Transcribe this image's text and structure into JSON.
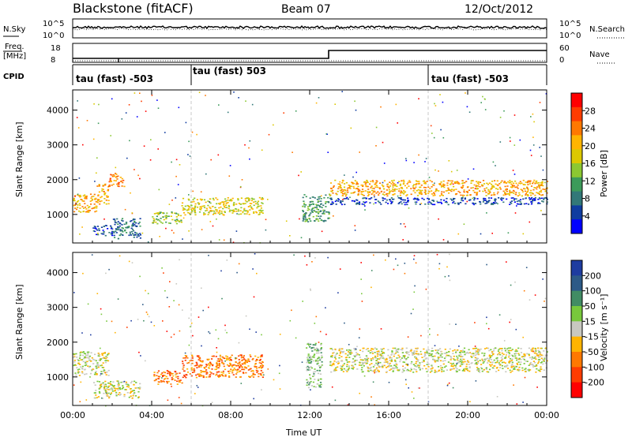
{
  "header": {
    "station": "Blackstone (fitACF)",
    "beam": "Beam 07",
    "date": "12/Oct/2012"
  },
  "nsky_panel": {
    "left_label": "N.Sky",
    "right_label": "N.Search",
    "left_ticks": [
      "10^5",
      "10^0"
    ],
    "right_ticks": [
      "10^5",
      "10^0"
    ]
  },
  "freq_panel": {
    "left_label_1": "Freq.",
    "left_label_2": "[MHz]",
    "left_ticks": [
      "18",
      "8"
    ],
    "right_label": "Nave",
    "right_ticks": [
      "60",
      "0"
    ]
  },
  "cpid_panel": {
    "label": "CPID",
    "modes": [
      {
        "start_h": 0,
        "text": "tau (fast) -503"
      },
      {
        "start_h": 6,
        "text": "tau (fast) 503"
      },
      {
        "start_h": 18,
        "text": "tau (fast) -503"
      }
    ]
  },
  "power_colorbar": {
    "label": "Power [dB]",
    "ticks": [
      "28",
      "24",
      "20",
      "16",
      "12",
      "8",
      "4"
    ],
    "colors": [
      "#ff0000",
      "#ff3c00",
      "#ff7800",
      "#ffb400",
      "#dcc800",
      "#8cc832",
      "#3c9b5a",
      "#327878",
      "#0f3ca0",
      "#0000ff"
    ]
  },
  "velocity_colorbar": {
    "label": "Velocity [m s⁻¹]",
    "ticks": [
      "200",
      "100",
      "50",
      "15",
      "-15",
      "-50",
      "-100",
      "-200"
    ],
    "colors": [
      "#1e3ca0",
      "#2d5a87",
      "#418c64",
      "#78c83c",
      "#c8c8c0",
      "#ffb400",
      "#ff7800",
      "#ff3c00",
      "#ff0000"
    ]
  },
  "chart_data": [
    {
      "type": "heatmap",
      "title": "Power",
      "ylabel": "Slant Range [km]",
      "xlabel": "Time UT",
      "x_ticks": [
        "00:00",
        "04:00",
        "08:00",
        "12:00",
        "16:00",
        "20:00",
        "00:00"
      ],
      "y_ticks": [
        "1000",
        "2000",
        "3000",
        "4000"
      ],
      "xlim_hours": [
        0,
        24
      ],
      "ylim_km": [
        180,
        4580
      ],
      "dashed_lines_hours": [
        6,
        18
      ],
      "echo_bands": [
        {
          "t": [
            0.0,
            1.2
          ],
          "r": [
            1050,
            1600
          ],
          "level": 3
        },
        {
          "t": [
            1.2,
            1.8
          ],
          "r": [
            1300,
            1900
          ],
          "level": 3
        },
        {
          "t": [
            1.8,
            2.6
          ],
          "r": [
            1800,
            2200
          ],
          "level": 2
        },
        {
          "t": [
            1.0,
            2.0
          ],
          "r": [
            400,
            700
          ],
          "level": 8
        },
        {
          "t": [
            2.0,
            3.4
          ],
          "r": [
            320,
            900
          ],
          "level": 7
        },
        {
          "t": [
            4.0,
            5.5
          ],
          "r": [
            750,
            1100
          ],
          "level": 5
        },
        {
          "t": [
            5.5,
            9.6
          ],
          "r": [
            1000,
            1500
          ],
          "level": 4
        },
        {
          "t": [
            11.6,
            13.0
          ],
          "r": [
            800,
            1600
          ],
          "level": 6
        },
        {
          "t": [
            13.0,
            24.0
          ],
          "r": [
            1550,
            2000
          ],
          "level": 3
        },
        {
          "t": [
            13.0,
            24.0
          ],
          "r": [
            1300,
            1500
          ],
          "level": 8
        }
      ]
    },
    {
      "type": "heatmap",
      "title": "Velocity",
      "ylabel": "Slant Range [km]",
      "xlabel": "Time UT",
      "x_ticks": [
        "00:00",
        "04:00",
        "08:00",
        "12:00",
        "16:00",
        "20:00",
        "00:00"
      ],
      "y_ticks": [
        "1000",
        "2000",
        "3000",
        "4000"
      ],
      "xlim_hours": [
        0,
        24
      ],
      "ylim_km": [
        180,
        4580
      ],
      "dashed_lines_hours": [
        6,
        18
      ],
      "echo_bands": [
        {
          "t": [
            0.0,
            1.8
          ],
          "r": [
            1050,
            1750
          ],
          "level": 4
        },
        {
          "t": [
            1.0,
            3.4
          ],
          "r": [
            400,
            900
          ],
          "level": 4
        },
        {
          "t": [
            4.0,
            5.5
          ],
          "r": [
            800,
            1200
          ],
          "level": 6
        },
        {
          "t": [
            5.5,
            9.6
          ],
          "r": [
            1000,
            1650
          ],
          "level": 6
        },
        {
          "t": [
            11.8,
            12.6
          ],
          "r": [
            700,
            2000
          ],
          "level": 3
        },
        {
          "t": [
            13.0,
            24.0
          ],
          "r": [
            1150,
            1850
          ],
          "level": 4
        }
      ]
    }
  ]
}
